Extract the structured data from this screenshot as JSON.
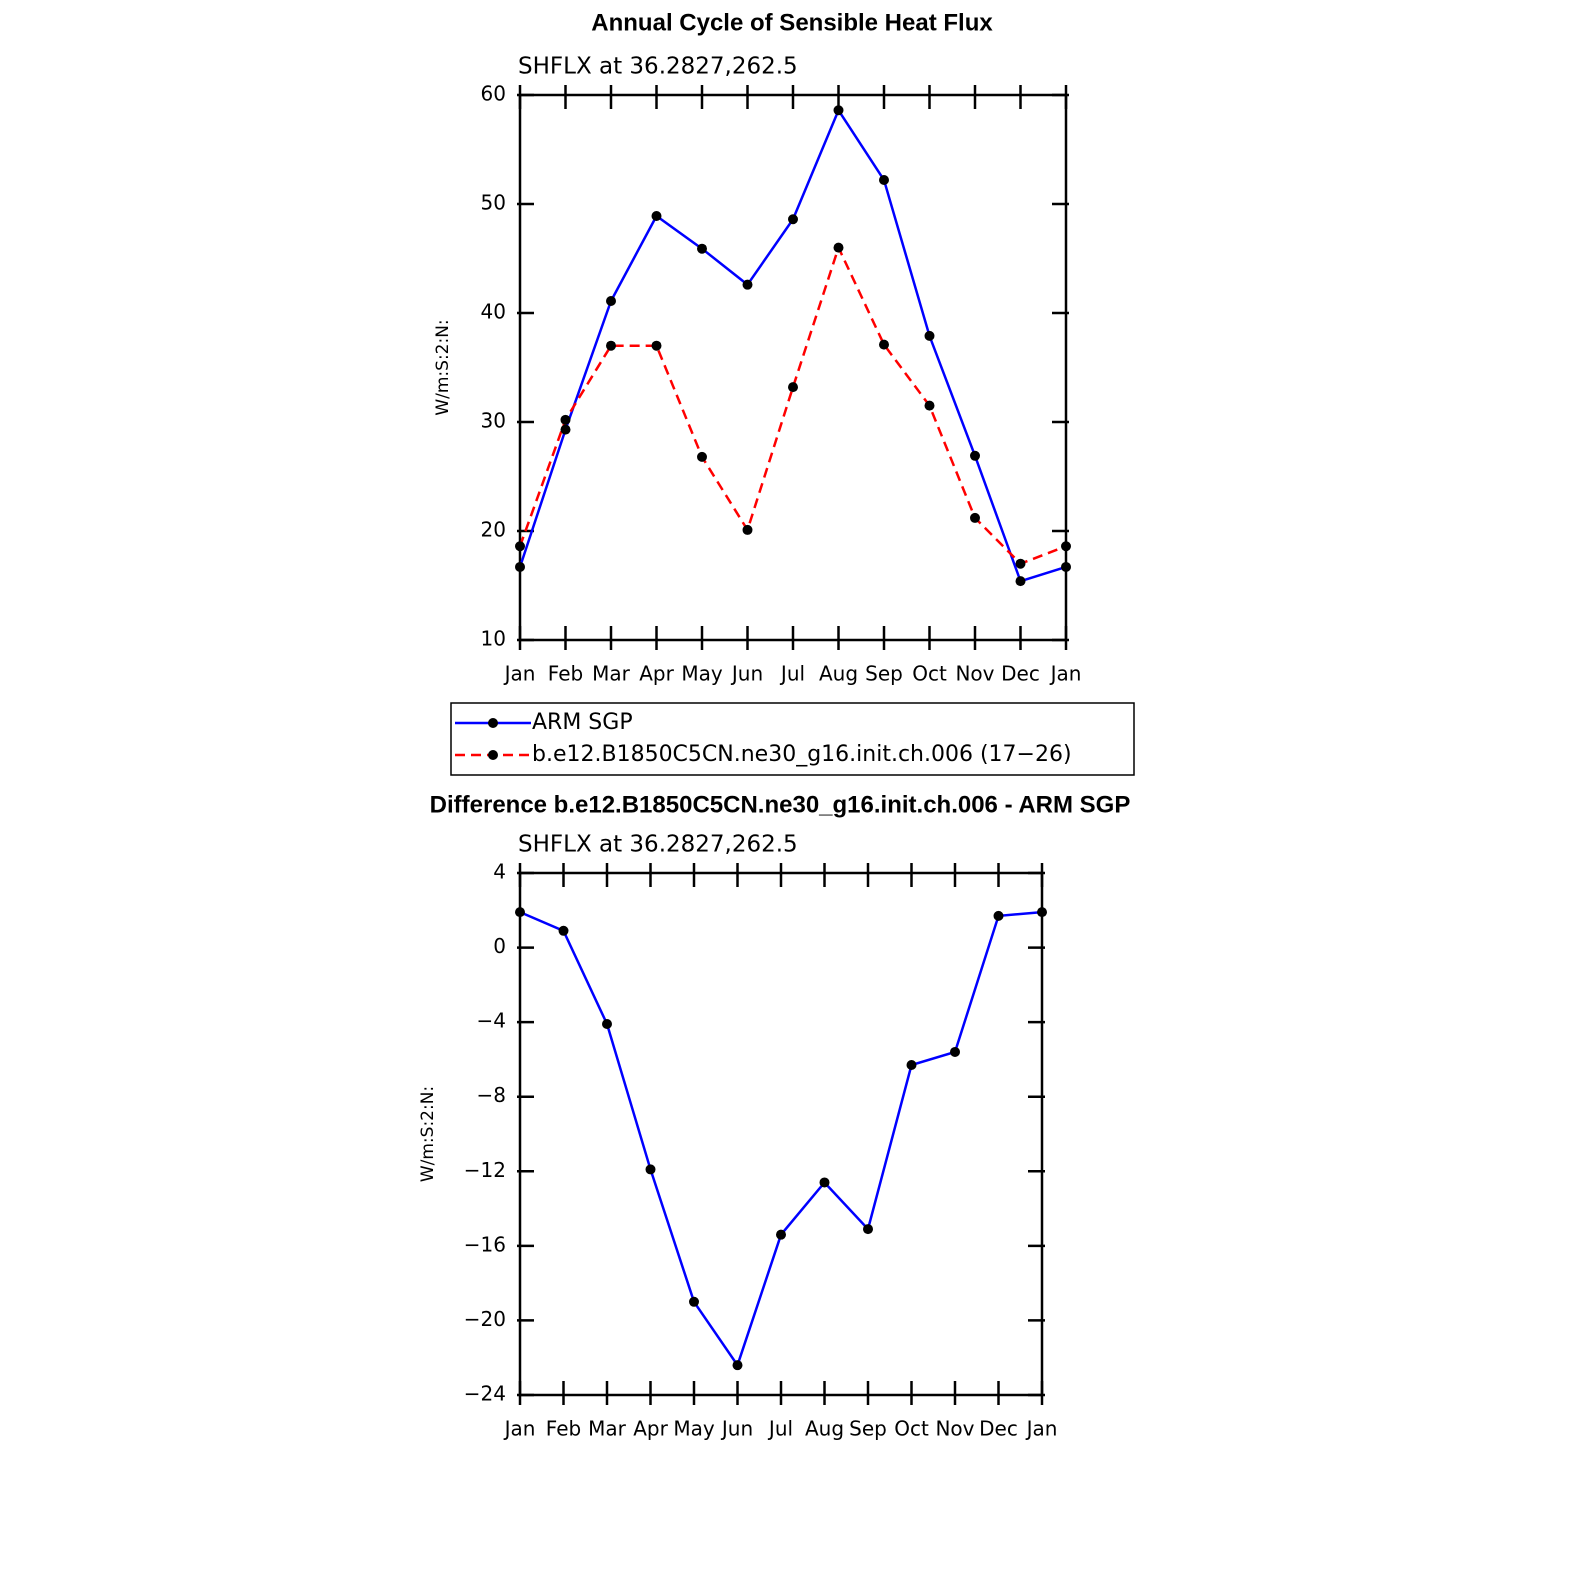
{
  "chart_data": [
    {
      "type": "line",
      "title": "Annual Cycle of Sensible Heat Flux",
      "subtitle": "SHFLX at 36.2827,262.5",
      "y_label": "W/m:S:2:N:",
      "categories": [
        "Jan",
        "Feb",
        "Mar",
        "Apr",
        "May",
        "Jun",
        "Jul",
        "Aug",
        "Sep",
        "Oct",
        "Nov",
        "Dec",
        "Jan"
      ],
      "series": [
        {
          "name": "ARM SGP",
          "color": "#0000ff",
          "dashed": false,
          "values": [
            16.7,
            29.3,
            41.1,
            48.9,
            45.9,
            42.6,
            48.6,
            58.6,
            52.2,
            37.9,
            26.9,
            15.4,
            16.7
          ]
        },
        {
          "name": "b.e12.B1850C5CN.ne30_g16.init.ch.006 (17−26)",
          "color": "#ff0000",
          "dashed": true,
          "values": [
            18.6,
            30.2,
            37.0,
            37.0,
            26.8,
            20.1,
            33.2,
            46.0,
            37.1,
            31.5,
            21.2,
            17.0,
            18.6
          ]
        }
      ],
      "ylim": [
        10,
        60
      ],
      "yticks": [
        10,
        20,
        30,
        40,
        50,
        60
      ],
      "legend": "below",
      "marker_color": "#000000"
    },
    {
      "type": "line",
      "title": "Difference b.e12.B1850C5CN.ne30_g16.init.ch.006 - ARM SGP",
      "subtitle": "SHFLX at 36.2827,262.5",
      "y_label": "W/m:S:2:N:",
      "categories": [
        "Jan",
        "Feb",
        "Mar",
        "Apr",
        "May",
        "Jun",
        "Jul",
        "Aug",
        "Sep",
        "Oct",
        "Nov",
        "Dec",
        "Jan"
      ],
      "series": [
        {
          "color": "#0000ff",
          "dashed": false,
          "values": [
            1.9,
            0.9,
            -4.1,
            -11.9,
            -19.0,
            -22.4,
            -15.4,
            -12.6,
            -15.1,
            -6.3,
            -5.6,
            1.7,
            1.9
          ]
        }
      ],
      "ylim": [
        -24,
        4
      ],
      "yticks": [
        {
          "value": -24,
          "label": "−24"
        },
        {
          "value": -20,
          "label": "−20"
        },
        {
          "value": -16,
          "label": "−16"
        },
        {
          "value": -12,
          "label": "−12"
        },
        {
          "value": -8,
          "label": "−8"
        },
        {
          "value": -4,
          "label": "−4"
        },
        0,
        4
      ],
      "marker_color": "#000000"
    }
  ]
}
